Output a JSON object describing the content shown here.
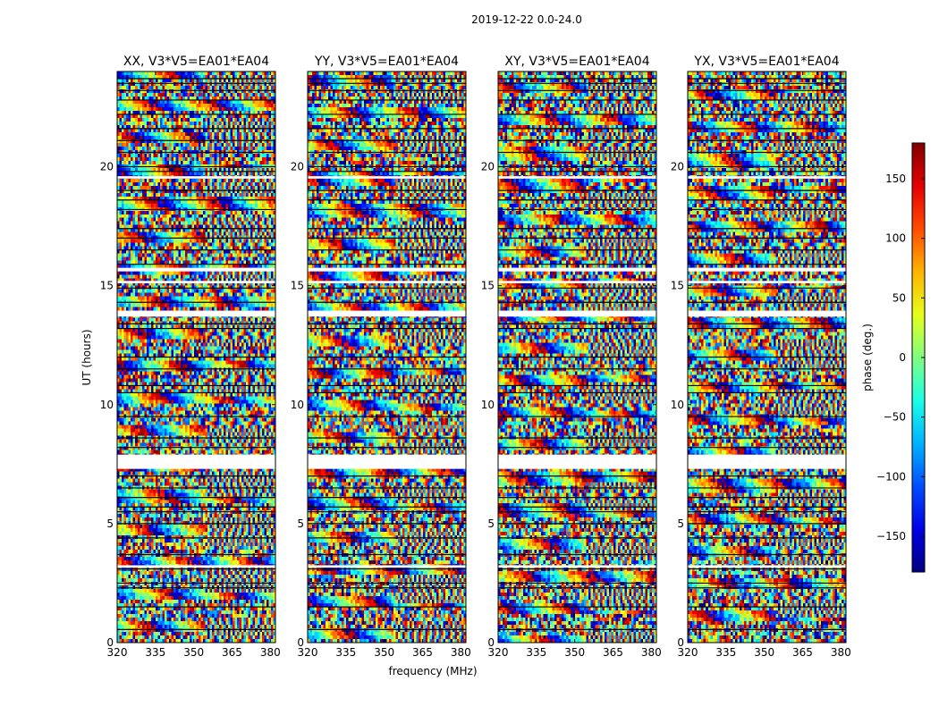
{
  "chart_data": {
    "type": "heatmap",
    "suptitle": "2019-12-22 0.0-24.0",
    "xlabel": "frequency (MHz)",
    "ylabel": "UT (hours)",
    "xlim": [
      320,
      382
    ],
    "ylim": [
      0,
      24
    ],
    "xticks": [
      320,
      335,
      350,
      365,
      380
    ],
    "yticks": [
      0,
      5,
      10,
      15,
      20
    ],
    "panels": [
      {
        "title": "XX, V3*V5=EA01*EA04",
        "pol": "XX"
      },
      {
        "title": "YY, V3*V5=EA01*EA04",
        "pol": "YY"
      },
      {
        "title": "XY, V3*V5=EA01*EA04",
        "pol": "XY"
      },
      {
        "title": "YX, V3*V5=EA01*EA04",
        "pol": "YX"
      }
    ],
    "colorbar": {
      "label": "phase (deg.)",
      "range": [
        -180,
        180
      ],
      "ticks": [
        -150,
        -100,
        -50,
        0,
        50,
        100,
        150
      ],
      "tick_labels": [
        "−150",
        "−100",
        "−50",
        "0",
        "50",
        "100",
        "150"
      ],
      "colormap": "jet"
    },
    "blank_bands_hours": [
      [
        7.3,
        7.9
      ],
      [
        13.7,
        13.95
      ],
      [
        15.1,
        15.2
      ],
      [
        15.6,
        15.75
      ],
      [
        19.5,
        19.6
      ],
      [
        3.15,
        3.25
      ]
    ],
    "flag_lines_hours": [
      0.55,
      1.5,
      2.3,
      2.5,
      3.1,
      3.7,
      4.4,
      5.0,
      5.5,
      5.7,
      6.1,
      6.5,
      7.0,
      8.2,
      8.6,
      9.5,
      10.5,
      10.8,
      11.5,
      12.0,
      13.2,
      13.4,
      14.3,
      14.9,
      15.9,
      16.5,
      17.0,
      17.4,
      18.2,
      18.6,
      19.0,
      19.8,
      20.0,
      20.6,
      21.1,
      21.6,
      22.2,
      22.8,
      23.2,
      23.5,
      23.7
    ]
  }
}
